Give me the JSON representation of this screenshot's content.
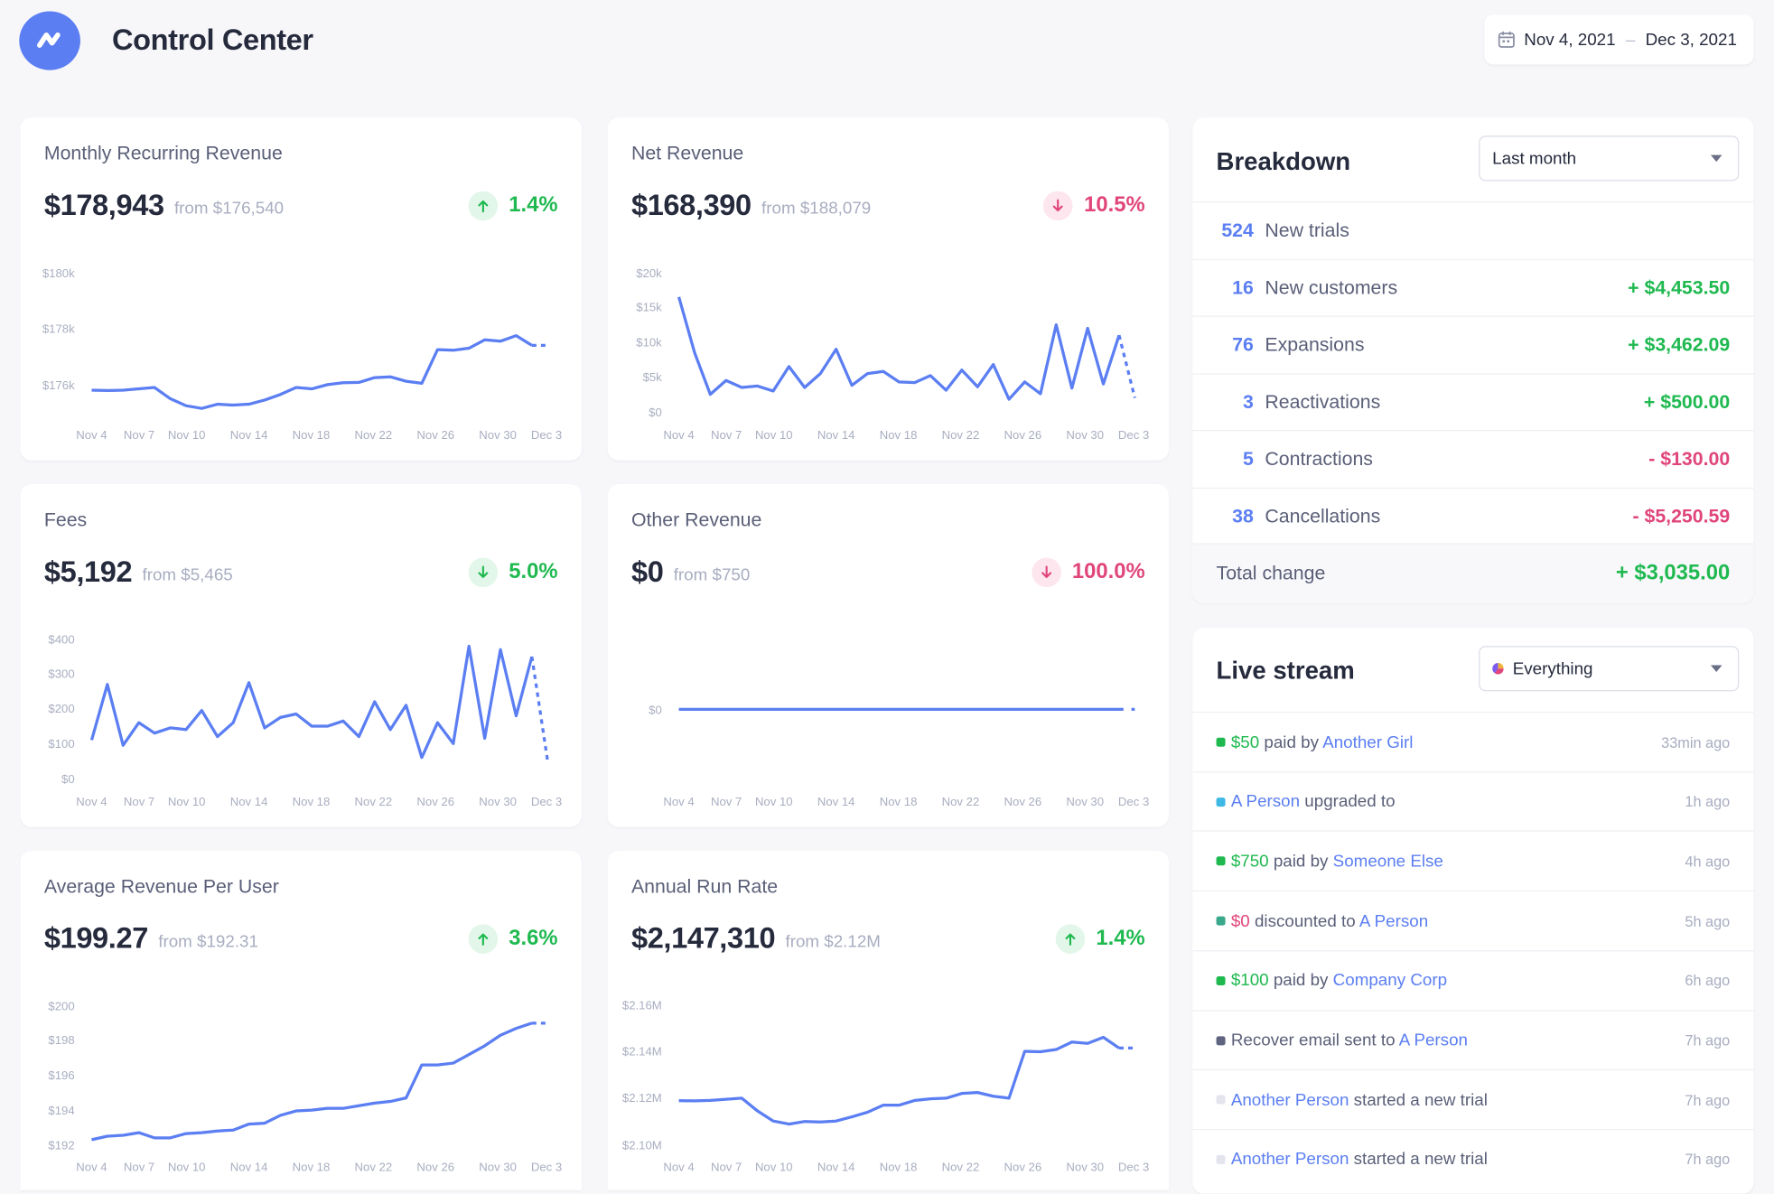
{
  "app": {
    "title": "Control Center"
  },
  "date_range": {
    "start": "Nov 4, 2021",
    "separator": "–",
    "end": "Dec 3, 2021"
  },
  "x_ticks": [
    "Nov 4",
    "Nov 7",
    "Nov 10",
    "Nov 14",
    "Nov 18",
    "Nov 22",
    "Nov 26",
    "Nov 30",
    "Dec 3"
  ],
  "colors": {
    "accent": "#5b7ef2",
    "positive": "#1fb950",
    "negative": "#e0457b"
  },
  "metrics": [
    {
      "id": "mrr",
      "title": "Monthly Recurring Revenue",
      "value": "$178,943",
      "from": "from $176,540",
      "change": "1.4%",
      "direction": "up",
      "sentiment": "good"
    },
    {
      "id": "net",
      "title": "Net Revenue",
      "value": "$168,390",
      "from": "from $188,079",
      "change": "10.5%",
      "direction": "down",
      "sentiment": "bad"
    },
    {
      "id": "fees",
      "title": "Fees",
      "value": "$5,192",
      "from": "from $5,465",
      "change": "5.0%",
      "direction": "down",
      "sentiment": "good"
    },
    {
      "id": "other",
      "title": "Other Revenue",
      "value": "$0",
      "from": "from $750",
      "change": "100.0%",
      "direction": "down",
      "sentiment": "bad"
    },
    {
      "id": "arpu",
      "title": "Average Revenue Per User",
      "value": "$199.27",
      "from": "from $192.31",
      "change": "3.6%",
      "direction": "up",
      "sentiment": "good"
    },
    {
      "id": "arr",
      "title": "Annual Run Rate",
      "value": "$2,147,310",
      "from": "from $2.12M",
      "change": "1.4%",
      "direction": "up",
      "sentiment": "good"
    }
  ],
  "chart_data": [
    {
      "type": "line",
      "title": "Monthly Recurring Revenue",
      "x": [
        "Nov 4",
        "Nov 5",
        "Nov 6",
        "Nov 7",
        "Nov 8",
        "Nov 9",
        "Nov 10",
        "Nov 11",
        "Nov 12",
        "Nov 13",
        "Nov 14",
        "Nov 15",
        "Nov 16",
        "Nov 17",
        "Nov 18",
        "Nov 19",
        "Nov 20",
        "Nov 21",
        "Nov 22",
        "Nov 23",
        "Nov 24",
        "Nov 25",
        "Nov 26",
        "Nov 27",
        "Nov 28",
        "Nov 29",
        "Nov 30",
        "Dec 1",
        "Dec 2",
        "Dec 3"
      ],
      "ytick_labels": [
        "$176k",
        "$178k",
        "$180k"
      ],
      "ylim": [
        175000,
        180000
      ],
      "values": [
        175800,
        175790,
        175800,
        175850,
        175900,
        175500,
        175250,
        175150,
        175300,
        175270,
        175300,
        175450,
        175650,
        175900,
        175850,
        176000,
        176070,
        176080,
        176250,
        176280,
        176120,
        176050,
        177250,
        177230,
        177300,
        177600,
        177550,
        177750,
        177400,
        177400
      ]
    },
    {
      "type": "line",
      "title": "Net Revenue",
      "x": [
        "Nov 4",
        "Nov 5",
        "Nov 6",
        "Nov 7",
        "Nov 8",
        "Nov 9",
        "Nov 10",
        "Nov 11",
        "Nov 12",
        "Nov 13",
        "Nov 14",
        "Nov 15",
        "Nov 16",
        "Nov 17",
        "Nov 18",
        "Nov 19",
        "Nov 20",
        "Nov 21",
        "Nov 22",
        "Nov 23",
        "Nov 24",
        "Nov 25",
        "Nov 26",
        "Nov 27",
        "Nov 28",
        "Nov 29",
        "Nov 30",
        "Dec 1",
        "Dec 2",
        "Dec 3"
      ],
      "ytick_labels": [
        "$0",
        "$5k",
        "$10k",
        "$15k",
        "$20k"
      ],
      "ylim": [
        0,
        20000
      ],
      "values": [
        16500,
        8500,
        2500,
        4500,
        3500,
        3700,
        3000,
        6500,
        3500,
        5500,
        9000,
        3800,
        5500,
        5800,
        4300,
        4200,
        5200,
        3100,
        6000,
        3600,
        6800,
        1800,
        4300,
        2600,
        12500,
        3400,
        12000,
        4000,
        11000,
        2000
      ]
    },
    {
      "type": "line",
      "title": "Fees",
      "x": [
        "Nov 4",
        "Nov 5",
        "Nov 6",
        "Nov 7",
        "Nov 8",
        "Nov 9",
        "Nov 10",
        "Nov 11",
        "Nov 12",
        "Nov 13",
        "Nov 14",
        "Nov 15",
        "Nov 16",
        "Nov 17",
        "Nov 18",
        "Nov 19",
        "Nov 20",
        "Nov 21",
        "Nov 22",
        "Nov 23",
        "Nov 24",
        "Nov 25",
        "Nov 26",
        "Nov 27",
        "Nov 28",
        "Nov 29",
        "Nov 30",
        "Dec 1",
        "Dec 2",
        "Dec 3"
      ],
      "ytick_labels": [
        "$0",
        "$100",
        "$200",
        "$300",
        "$400"
      ],
      "ylim": [
        0,
        400
      ],
      "values": [
        110,
        270,
        95,
        160,
        130,
        145,
        140,
        195,
        120,
        160,
        275,
        145,
        175,
        185,
        150,
        150,
        165,
        120,
        220,
        140,
        210,
        60,
        160,
        100,
        380,
        115,
        370,
        180,
        350,
        50
      ]
    },
    {
      "type": "line",
      "title": "Other Revenue",
      "x": [
        "Nov 4",
        "Dec 3"
      ],
      "ytick_labels": [
        "$0"
      ],
      "ylim": [
        -1,
        1
      ],
      "values": [
        0,
        0
      ]
    },
    {
      "type": "line",
      "title": "Average Revenue Per User",
      "x": [
        "Nov 4",
        "Nov 5",
        "Nov 6",
        "Nov 7",
        "Nov 8",
        "Nov 9",
        "Nov 10",
        "Nov 11",
        "Nov 12",
        "Nov 13",
        "Nov 14",
        "Nov 15",
        "Nov 16",
        "Nov 17",
        "Nov 18",
        "Nov 19",
        "Nov 20",
        "Nov 21",
        "Nov 22",
        "Nov 23",
        "Nov 24",
        "Nov 25",
        "Nov 26",
        "Nov 27",
        "Nov 28",
        "Nov 29",
        "Nov 30",
        "Dec 1",
        "Dec 2",
        "Dec 3"
      ],
      "ytick_labels": [
        "$192",
        "$194",
        "$196",
        "$198",
        "$200"
      ],
      "ylim": [
        191.4,
        200.2
      ],
      "values": [
        192.3,
        192.5,
        192.55,
        192.7,
        192.4,
        192.4,
        192.65,
        192.7,
        192.8,
        192.85,
        193.2,
        193.25,
        193.7,
        193.95,
        194.0,
        194.1,
        194.1,
        194.25,
        194.4,
        194.5,
        194.7,
        196.6,
        196.6,
        196.7,
        197.2,
        197.7,
        198.3,
        198.7,
        199.0,
        199.0
      ]
    },
    {
      "type": "line",
      "title": "Annual Run Rate",
      "x": [
        "Nov 4",
        "Nov 5",
        "Nov 6",
        "Nov 7",
        "Nov 8",
        "Nov 9",
        "Nov 10",
        "Nov 11",
        "Nov 12",
        "Nov 13",
        "Nov 14",
        "Nov 15",
        "Nov 16",
        "Nov 17",
        "Nov 18",
        "Nov 19",
        "Nov 20",
        "Nov 21",
        "Nov 22",
        "Nov 23",
        "Nov 24",
        "Nov 25",
        "Nov 26",
        "Nov 27",
        "Nov 28",
        "Nov 29",
        "Nov 30",
        "Dec 1",
        "Dec 2",
        "Dec 3"
      ],
      "ytick_labels": [
        "$2.10M",
        "$2.12M",
        "$2.14M",
        "$2.16M"
      ],
      "ylim": [
        2100000,
        2160000
      ],
      "values": [
        2118900,
        2118800,
        2119000,
        2119500,
        2120000,
        2114500,
        2110200,
        2108900,
        2110000,
        2109800,
        2110200,
        2112000,
        2114000,
        2117000,
        2117000,
        2119000,
        2119700,
        2120000,
        2122000,
        2122400,
        2120800,
        2120000,
        2140000,
        2139800,
        2140800,
        2144000,
        2143400,
        2146000,
        2141400,
        2141400
      ]
    }
  ],
  "breakdown": {
    "title": "Breakdown",
    "filter": "Last month",
    "rows": [
      {
        "count": "524",
        "label": "New trials",
        "amount": ""
      },
      {
        "count": "16",
        "label": "New customers",
        "amount": "+ $4,453.50",
        "sign": "pos"
      },
      {
        "count": "76",
        "label": "Expansions",
        "amount": "+ $3,462.09",
        "sign": "pos"
      },
      {
        "count": "3",
        "label": "Reactivations",
        "amount": "+ $500.00",
        "sign": "pos"
      },
      {
        "count": "5",
        "label": "Contractions",
        "amount": "- $130.00",
        "sign": "neg"
      },
      {
        "count": "38",
        "label": "Cancellations",
        "amount": "- $5,250.59",
        "sign": "neg"
      }
    ],
    "total_label": "Total change",
    "total_amount": "+ $3,035.00"
  },
  "live_stream": {
    "title": "Live stream",
    "filter": "Everything",
    "events": [
      {
        "dot": "#1fb950",
        "parts": [
          {
            "t": "$50",
            "s": "amt-pos"
          },
          {
            "t": " paid by ",
            "s": ""
          },
          {
            "t": "Another Girl",
            "s": "link"
          }
        ],
        "time": "33min ago"
      },
      {
        "dot": "#3fb8e6",
        "parts": [
          {
            "t": "A Person",
            "s": "link"
          },
          {
            "t": " upgraded to",
            "s": ""
          }
        ],
        "time": "1h ago"
      },
      {
        "dot": "#1fb950",
        "parts": [
          {
            "t": "$750",
            "s": "amt-pos"
          },
          {
            "t": " paid by ",
            "s": ""
          },
          {
            "t": "Someone Else",
            "s": "link"
          }
        ],
        "time": "4h ago"
      },
      {
        "dot": "#3aa88a",
        "parts": [
          {
            "t": "$0",
            "s": "amt-neg"
          },
          {
            "t": " discounted to ",
            "s": ""
          },
          {
            "t": "A Person",
            "s": "link"
          }
        ],
        "time": "5h ago"
      },
      {
        "dot": "#1fb950",
        "parts": [
          {
            "t": "$100",
            "s": "amt-pos"
          },
          {
            "t": " paid by ",
            "s": ""
          },
          {
            "t": "Company Corp",
            "s": "link"
          }
        ],
        "time": "6h ago"
      },
      {
        "dot": "#5f6480",
        "parts": [
          {
            "t": "Recover email sent to ",
            "s": ""
          },
          {
            "t": "A Person",
            "s": "link"
          }
        ],
        "time": "7h ago"
      },
      {
        "dot": "#e3e4ee",
        "parts": [
          {
            "t": "Another Person",
            "s": "link"
          },
          {
            "t": " started a new trial",
            "s": ""
          }
        ],
        "time": "7h ago"
      },
      {
        "dot": "#e3e4ee",
        "parts": [
          {
            "t": "Another Person",
            "s": "link"
          },
          {
            "t": " started a new trial",
            "s": ""
          }
        ],
        "time": "7h ago"
      }
    ]
  }
}
